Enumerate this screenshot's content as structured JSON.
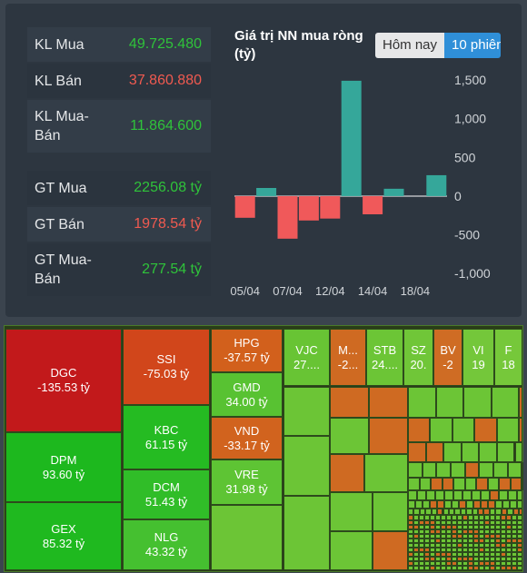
{
  "stats": {
    "rows": [
      {
        "label": "KL Mua",
        "value": "49.725.480",
        "color": "#2fc33a"
      },
      {
        "label": "KL Bán",
        "value": "37.860.880",
        "color": "#f05a50"
      },
      {
        "label": "KL Mua-Bán",
        "value": "11.864.600",
        "color": "#2fc33a"
      },
      {
        "label": "GT Mua",
        "value": "2256.08 tỷ",
        "color": "#2fc33a"
      },
      {
        "label": "GT Bán",
        "value": "1978.54 tỷ",
        "color": "#f05a50"
      },
      {
        "label": "GT Mua-Bán",
        "value": "277.54 tỷ",
        "color": "#2fc33a"
      }
    ]
  },
  "tabs": [
    "Hôm nay",
    "10 phiên"
  ],
  "chart_data": {
    "type": "bar",
    "title": "Giá trị NN mua ròng (tỷ)",
    "categories": [
      "05/04",
      null,
      "07/04",
      null,
      "12/04",
      null,
      "14/04",
      null,
      "18/04",
      null
    ],
    "values": [
      -280,
      105,
      -550,
      -315,
      -290,
      1490,
      -235,
      95,
      0,
      270
    ],
    "positive_color": "#35a79a",
    "negative_color": "#f0595a",
    "ylim": [
      -1150,
      1550
    ],
    "yticks": [
      {
        "value": 1500,
        "label": "1,500"
      },
      {
        "value": 1000,
        "label": "1,000"
      },
      500,
      0,
      -500,
      {
        "value": -1000,
        "label": "-1,000"
      }
    ]
  },
  "treemap": [
    {
      "name": "DGC",
      "value": "-135.53 tỷ",
      "color": "#c2191b"
    },
    {
      "name": "DPM",
      "value": "93.60 tỷ",
      "color": "#1db81e"
    },
    {
      "name": "GEX",
      "value": "85.32 tỷ",
      "color": "#1fb91f"
    },
    {
      "name": "SSI",
      "value": "-75.03 tỷ",
      "color": "#d1461b"
    },
    {
      "name": "KBC",
      "value": "61.15 tỷ",
      "color": "#25bb22"
    },
    {
      "name": "DCM",
      "value": "51.43 tỷ",
      "color": "#30bd28"
    },
    {
      "name": "NLG",
      "value": "43.32 tỷ",
      "color": "#45c030"
    },
    {
      "name": "HPG",
      "value": "-37.57 tỷ",
      "color": "#d2601c"
    },
    {
      "name": "GMD",
      "value": "34.00 tỷ",
      "color": "#58c232"
    },
    {
      "name": "VND",
      "value": "-33.17 tỷ",
      "color": "#d1631e"
    },
    {
      "name": "VRE",
      "value": "31.98 tỷ",
      "color": "#5ec434"
    },
    {
      "name": "VJC",
      "value": "27....",
      "color": "#68c434"
    },
    {
      "name": "M...",
      "value": "-2...",
      "color": "#cf6a22"
    },
    {
      "name": "STB",
      "value": "24....",
      "color": "#6cc536"
    },
    {
      "name": "SZ",
      "value": "20.",
      "color": "#70c638"
    },
    {
      "name": "BV",
      "value": "-2",
      "color": "#cf6c24"
    },
    {
      "name": "VI",
      "value": "19",
      "color": "#74c73a"
    },
    {
      "name": "F",
      "value": "18",
      "color": "#76c83a"
    }
  ]
}
